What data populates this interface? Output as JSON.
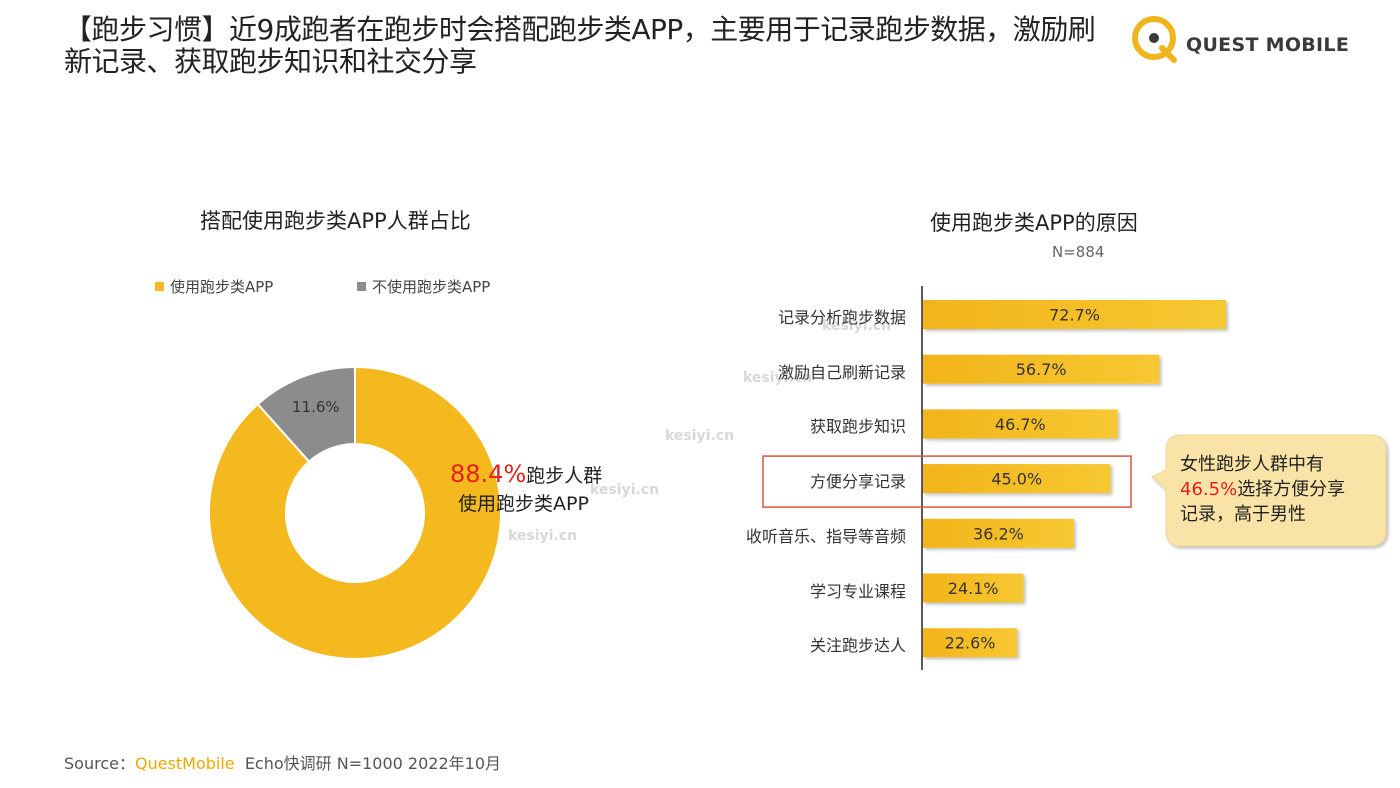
{
  "page": {
    "title": "【跑步习惯】近9成跑者在跑步时会搭配跑步类APP，主要用于记录跑步数据，激励刷新记录、获取跑步知识和社交分享",
    "logo_text": "QUEST MOBILE"
  },
  "left_chart": {
    "title": "搭配使用跑步类APP人群占比",
    "legend": [
      {
        "label": "使用跑步类APP",
        "color": "#f3b91e"
      },
      {
        "label": "不使用跑步类APP",
        "color": "#8c8c8c"
      }
    ],
    "annotation_value": "88.4%",
    "annotation_line1": "跑步人群",
    "annotation_line2": "使用跑步类APP",
    "slice_label_not_use": "11.6%"
  },
  "right_chart": {
    "title": "使用跑步类APP的原因",
    "sample": "N=884",
    "highlight_category": "方便分享记录",
    "callout_line1": "女性跑步人群中有",
    "callout_value": "46.5%",
    "callout_line2": "选择方便分享",
    "callout_line3": "记录，高于男性"
  },
  "chart_data": [
    {
      "type": "pie",
      "title": "搭配使用跑步类APP人群占比",
      "categories": [
        "使用跑步类APP",
        "不使用跑步类APP"
      ],
      "values": [
        88.4,
        11.6
      ],
      "colors": [
        "#f3b91e",
        "#8c8c8c"
      ],
      "legend_position": "top"
    },
    {
      "type": "bar",
      "orientation": "horizontal",
      "title": "使用跑步类APP的原因",
      "categories": [
        "记录分析跑步数据",
        "激励自己刷新记录",
        "获取跑步知识",
        "方便分享记录",
        "收听音乐、指导等音频",
        "学习专业课程",
        "关注跑步达人"
      ],
      "values": [
        72.7,
        56.7,
        46.7,
        45.0,
        36.2,
        24.1,
        22.6
      ],
      "value_labels": [
        "72.7%",
        "56.7%",
        "46.7%",
        "45.0%",
        "36.2%",
        "24.1%",
        "22.6%"
      ],
      "unit": "%",
      "color": "#f3b91e",
      "xlim": [
        0,
        80
      ],
      "grid": false
    }
  ],
  "watermarks": [
    "kesiyi.cn",
    "kesiyi.cn",
    "kesiyi.cn",
    "kesiyi.cn",
    "kesiyi.cn"
  ],
  "source": {
    "prefix": "Source：",
    "brand": "QuestMobile",
    "rest": "Echo快调研 N=1000 2022年10月"
  }
}
